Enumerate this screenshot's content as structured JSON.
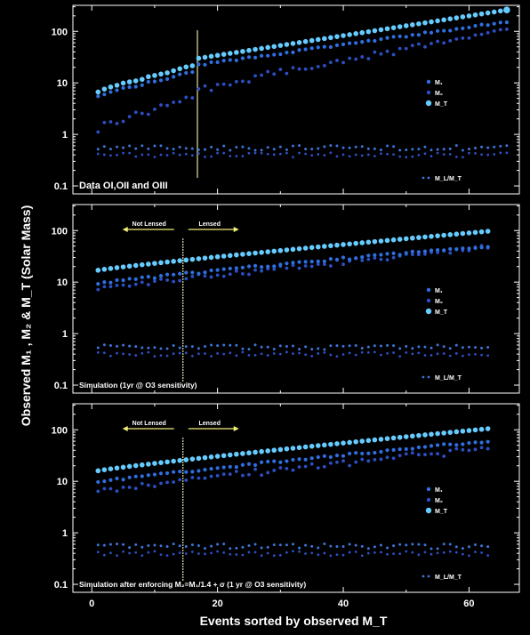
{
  "figure": {
    "ylabel": "Observed M₁ , M₂ & M_T (Solar Mass)",
    "xlabel": "Events sorted by observed M_T",
    "colors": {
      "background": "#000000",
      "m1": "#2f6fe0",
      "m2": "#2b50c4",
      "mt": "#66ccff",
      "ratio": "#3c74d8",
      "line": "#e3e0a6",
      "arrow": "#f2f07a",
      "frame": "#ffffff"
    }
  },
  "chart_data": [
    {
      "type": "scatter",
      "panel_label": "Data OI,OII and OIII",
      "legend": [
        "M₁",
        "M₂",
        "M_T"
      ],
      "ratio_legend": "M_L/M_T",
      "yscale": "log",
      "ylim": [
        0.07,
        320
      ],
      "yticks": [
        "100",
        "10",
        "1",
        "0.1"
      ],
      "xlim": [
        -3,
        68
      ],
      "divider_x": 16.8,
      "arrows": null,
      "n": 66,
      "mt_range": [
        7,
        260
      ],
      "m1_frac": [
        0.8,
        0.58
      ],
      "m2_frac": [
        0.2,
        0.42
      ],
      "grid": false
    },
    {
      "type": "scatter",
      "panel_label": "Simulation (1yr @ O3 sensitivity)",
      "legend": [
        "M₁",
        "M₂",
        "M_T"
      ],
      "ratio_legend": "M_L/M_T",
      "yscale": "log",
      "ylim": [
        0.07,
        320
      ],
      "yticks": [
        "100",
        "10",
        "1",
        "0.1"
      ],
      "xlim": [
        -3,
        68
      ],
      "divider_x": 14.5,
      "arrows": {
        "left": "Not Lensed",
        "right": "Lensed"
      },
      "n": 63,
      "mt_range": [
        17,
        97
      ],
      "m1_frac": [
        0.55,
        0.52
      ],
      "m2_frac": [
        0.45,
        0.48
      ],
      "grid": false
    },
    {
      "type": "scatter",
      "panel_label": "Simulation after enforcing M₂=M₁/1.4 + σ (1 yr @ O3 sensitivity)",
      "legend": [
        "M₁",
        "M₂",
        "M_T"
      ],
      "ratio_legend": "M_L/M_T",
      "yscale": "log",
      "ylim": [
        0.07,
        320
      ],
      "yticks": [
        "100",
        "10",
        "1",
        "0.1"
      ],
      "xticks": [
        "0",
        "20",
        "40",
        "60"
      ],
      "xlim": [
        -3,
        68
      ],
      "divider_x": 14.5,
      "arrows": {
        "left": "Not Lensed",
        "right": "Lensed"
      },
      "n": 63,
      "mt_range": [
        16,
        105
      ],
      "m1_frac": [
        0.6,
        0.58
      ],
      "m2_frac": [
        0.4,
        0.42
      ],
      "grid": false
    }
  ]
}
